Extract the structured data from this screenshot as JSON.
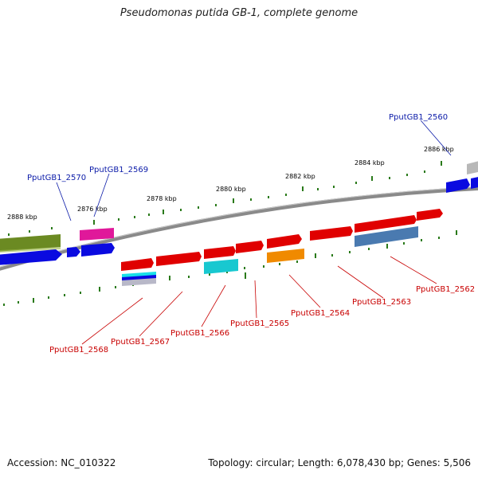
{
  "title": "Pseudomonas putida GB-1, complete genome",
  "accession": "Accession: NC_010322",
  "summary": "Topology: circular; Length: 6,078,430 bp; Genes: 5,506",
  "tick_labels": [
    "2876 kbp",
    "2878 kbp",
    "2880 kbp",
    "2882 kbp",
    "2884 kbp",
    "2886 kbp",
    "2888 kbp"
  ],
  "gene_labels": {
    "g2560": "PputGB1_2560",
    "g2570": "PputGB1_2570",
    "g2569": "PputGB1_2569",
    "g2562": "PputGB1_2562",
    "g2563": "PputGB1_2563",
    "g2564": "PputGB1_2564",
    "g2565": "PputGB1_2565",
    "g2566": "PputGB1_2566",
    "g2567": "PputGB1_2567",
    "g2568": "PputGB1_2568"
  },
  "colors": {
    "backbone": "#8a8a8a",
    "tick_green": "#2a7a1a",
    "gene_red": "#e00000",
    "gene_blue": "#0a0ae0",
    "gene_olive": "#6b8a22",
    "gene_magenta": "#e0189a",
    "gene_cyan": "#18c8d0",
    "gene_orange": "#f08a00",
    "gene_steel": "#4a7ab0",
    "gene_gray": "#b8b8b8",
    "label_blue": "#0a1aa8",
    "label_red": "#c80000"
  }
}
